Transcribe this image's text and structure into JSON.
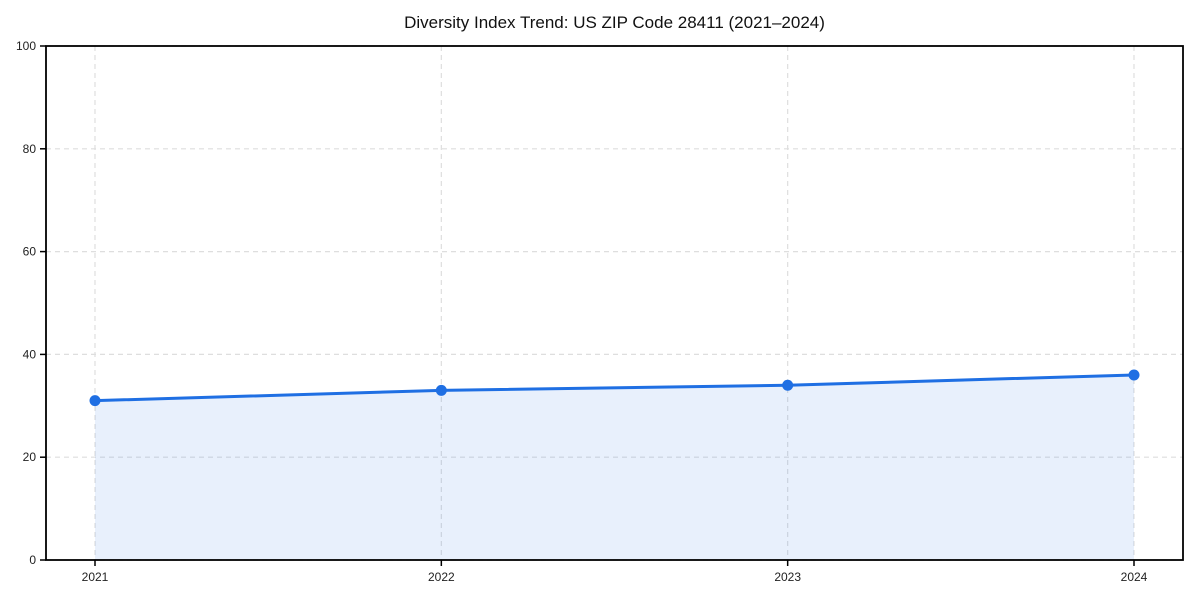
{
  "title": "Diversity Index Trend: US ZIP Code 28411 (2021–2024)",
  "chart_data": {
    "type": "area",
    "title": "Diversity Index Trend: US ZIP Code 28411 (2021–2024)",
    "x": [
      2021,
      2022,
      2023,
      2024
    ],
    "xticklabels": [
      "2021",
      "2022",
      "2023",
      "2024"
    ],
    "series": [
      {
        "name": "Diversity Index",
        "values": [
          31,
          33,
          34,
          36
        ]
      }
    ],
    "xlabel": "",
    "ylabel": "",
    "ylim": [
      0,
      100
    ],
    "yticks": [
      0,
      20,
      40,
      60,
      80,
      100
    ],
    "yticklabels": [
      "0",
      "20",
      "40",
      "60",
      "80",
      "100"
    ],
    "grid": true,
    "grid_style": "dashed",
    "legend": false,
    "colors": {
      "line": "#1f6fe3",
      "marker": "#1f6fe3",
      "fill": "rgba(31,111,227,0.10)",
      "grid": "#dedede",
      "axis": "#000000",
      "tick_text": "#222222",
      "background": "#ffffff"
    }
  }
}
